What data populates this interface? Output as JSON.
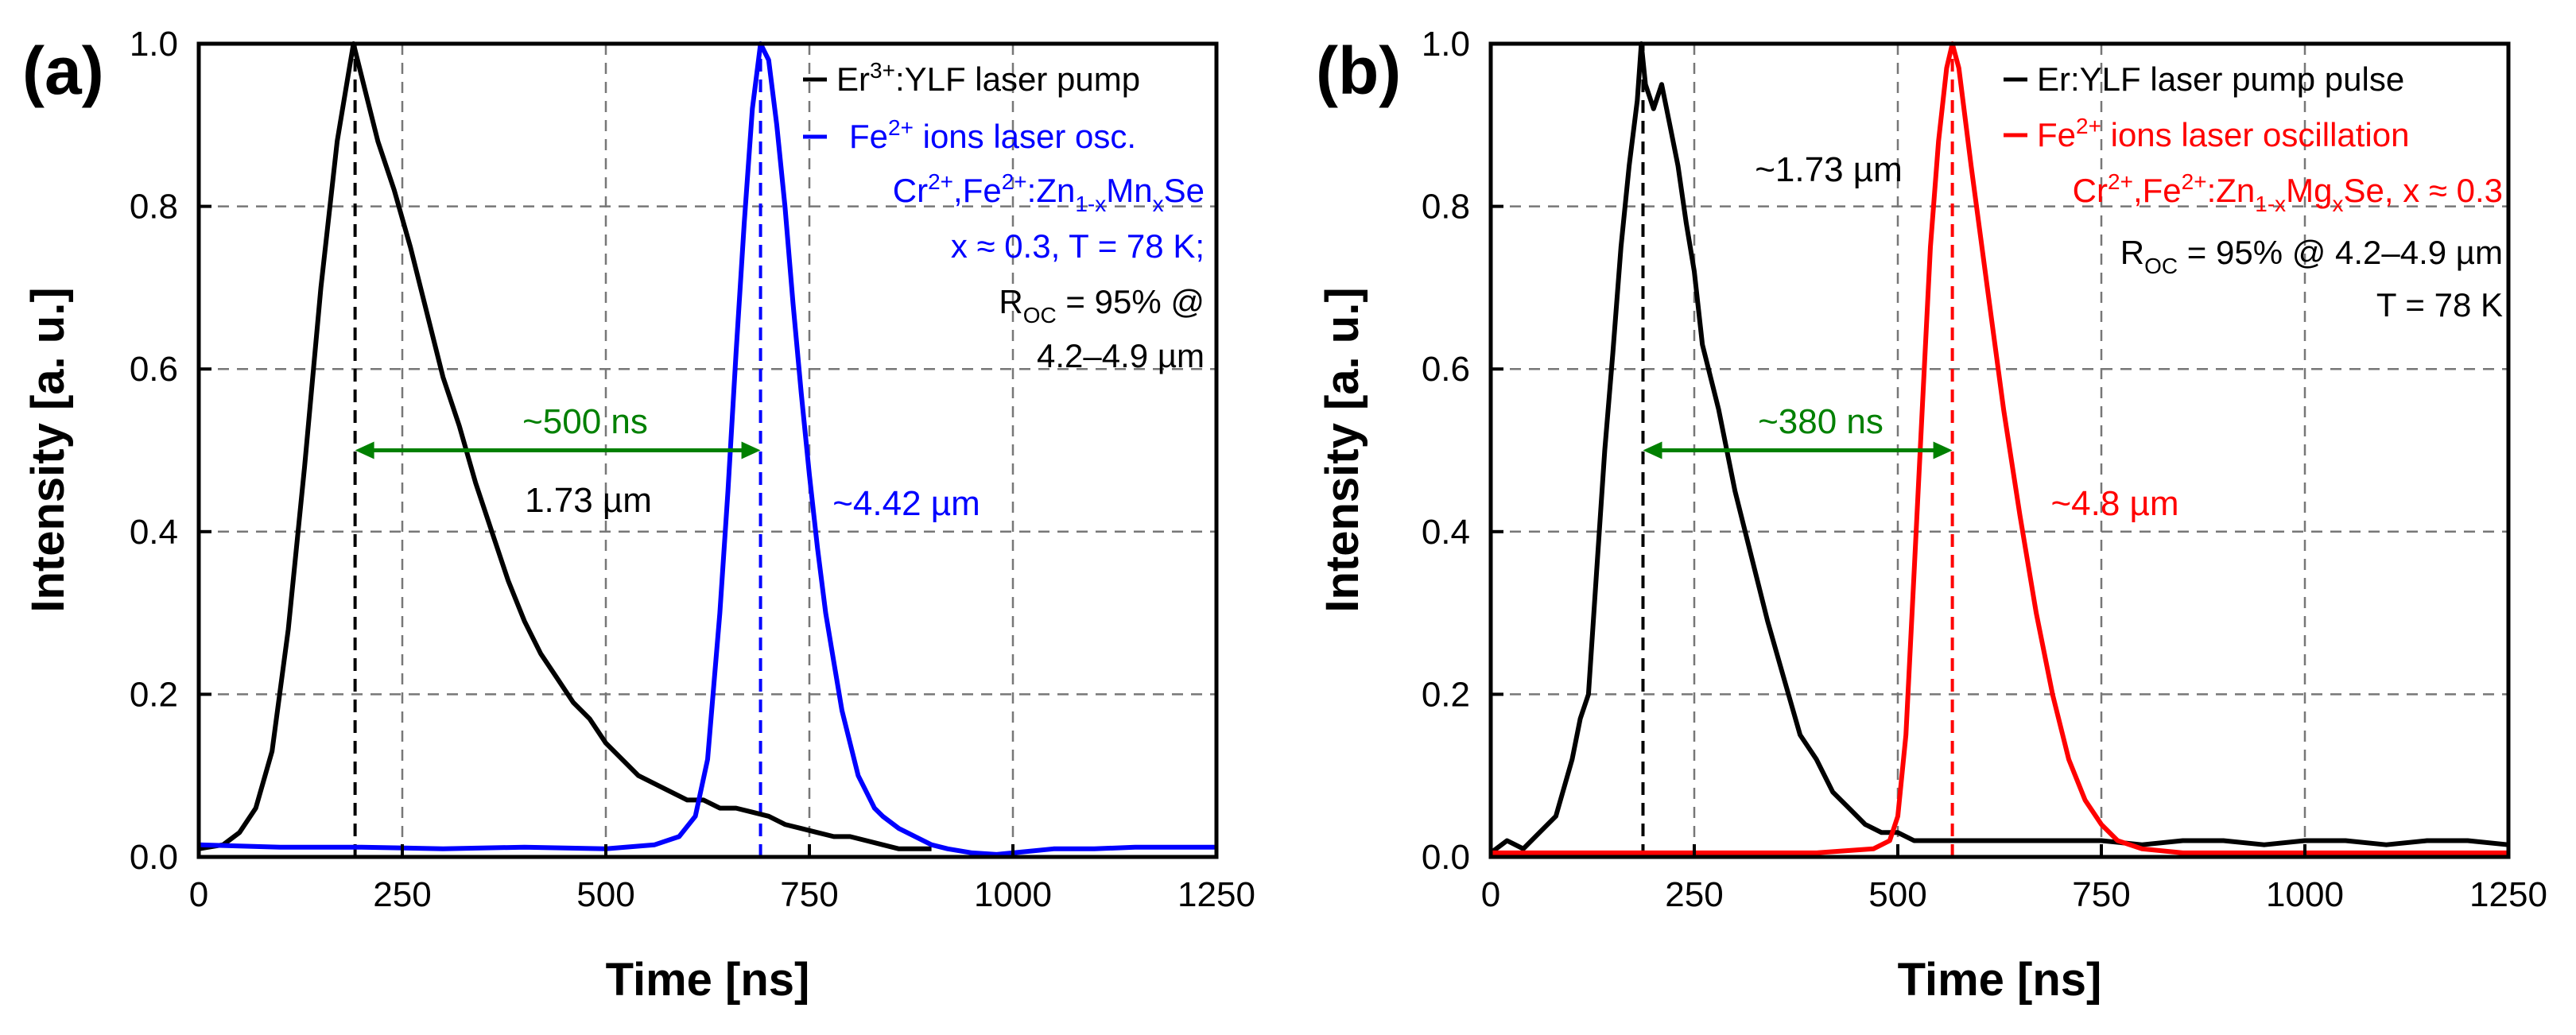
{
  "figure_title": "",
  "chart_data": [
    {
      "panel": "(a)",
      "type": "line",
      "xlabel": "Time [ns]",
      "ylabel": "Intensity [a. u.]",
      "xlim": [
        0,
        1250
      ],
      "ylim": [
        0,
        1.0
      ],
      "xticks": [
        0,
        250,
        500,
        750,
        1000,
        1250
      ],
      "yticks": [
        0.0,
        0.2,
        0.4,
        0.6,
        0.8,
        1.0
      ],
      "grid": true,
      "legend_position": "top-right",
      "series": [
        {
          "name": "Er:YLF laser pump",
          "color": "#000000",
          "x": [
            0,
            30,
            50,
            70,
            90,
            110,
            130,
            150,
            170,
            185,
            190,
            195,
            205,
            220,
            240,
            260,
            280,
            300,
            320,
            340,
            360,
            380,
            400,
            420,
            440,
            460,
            480,
            500,
            520,
            540,
            560,
            580,
            600,
            620,
            640,
            660,
            680,
            700,
            720,
            740,
            760,
            780,
            800,
            820,
            840,
            860,
            880,
            900
          ],
          "values": [
            0.01,
            0.015,
            0.03,
            0.06,
            0.13,
            0.28,
            0.48,
            0.7,
            0.88,
            0.97,
            1.0,
            0.98,
            0.94,
            0.88,
            0.82,
            0.75,
            0.67,
            0.59,
            0.53,
            0.46,
            0.4,
            0.34,
            0.29,
            0.25,
            0.22,
            0.19,
            0.17,
            0.14,
            0.12,
            0.1,
            0.09,
            0.08,
            0.07,
            0.07,
            0.06,
            0.06,
            0.055,
            0.05,
            0.04,
            0.035,
            0.03,
            0.025,
            0.025,
            0.02,
            0.015,
            0.01,
            0.01,
            0.01
          ]
        },
        {
          "name": "Fe2+ ions laser osc.",
          "color": "#0000ff",
          "x": [
            0,
            100,
            200,
            300,
            400,
            500,
            560,
            590,
            610,
            625,
            640,
            650,
            660,
            670,
            680,
            690,
            700,
            710,
            720,
            730,
            740,
            750,
            760,
            770,
            780,
            790,
            800,
            810,
            820,
            830,
            840,
            860,
            880,
            900,
            920,
            950,
            980,
            1000,
            1050,
            1100,
            1150,
            1200,
            1250
          ],
          "values": [
            0.015,
            0.012,
            0.012,
            0.01,
            0.012,
            0.01,
            0.015,
            0.025,
            0.05,
            0.12,
            0.3,
            0.45,
            0.62,
            0.78,
            0.92,
            1.0,
            0.98,
            0.9,
            0.8,
            0.68,
            0.57,
            0.47,
            0.38,
            0.3,
            0.24,
            0.18,
            0.14,
            0.1,
            0.08,
            0.06,
            0.05,
            0.035,
            0.025,
            0.015,
            0.01,
            0.005,
            0.003,
            0.005,
            0.01,
            0.01,
            0.012,
            0.012,
            0.012
          ]
        }
      ],
      "legend_entries": [
        {
          "base": "Er",
          "sup": "3+",
          "rest": ":YLF laser pump",
          "color": "#000000"
        },
        {
          "base": "Fe",
          "sup": "2+",
          "rest": " ions laser osc.",
          "color": "#0000ff"
        }
      ],
      "info_lines": [
        {
          "text": "Cr2+,Fe2+:Zn1-xMnxSe",
          "color": "#0000ff"
        },
        {
          "text": "x ≈ 0.3, T = 78 K;",
          "color": "#0000ff"
        },
        {
          "text": "ROC = 95% @",
          "color": "#000000"
        },
        {
          "text": "4.2–4.9 µm",
          "color": "#000000"
        }
      ],
      "info_parts": {
        "cr": "Cr",
        "cr_sup": "2+",
        "fe": ",Fe",
        "fe_sup": "2+",
        "zn": ":Zn",
        "zn_sub": "1-x",
        "mn": "Mn",
        "mn_sub": "x",
        "se": "Se",
        "x_line": "x ≈ 0.3, T = 78 K;",
        "r": "R",
        "r_sub": "OC",
        "r_rest": " = 95% @",
        "range": "4.2–4.9 µm"
      },
      "annotations": {
        "delay": "~500 ns",
        "pump_wavelength": "1.73 µm",
        "laser_wavelength": "~4.42 µm"
      },
      "delay_arrow": {
        "from": 192,
        "to": 690,
        "y": 0.5
      },
      "peak_markers": [
        192,
        690
      ],
      "colors": {
        "pump": "#000000",
        "laser": "#0000ff",
        "arrow": "#008000"
      }
    },
    {
      "panel": "(b)",
      "type": "line",
      "xlabel": "Time [ns]",
      "ylabel": "Intensity [a. u.]",
      "xlim": [
        0,
        1250
      ],
      "ylim": [
        0,
        1.0
      ],
      "xticks": [
        0,
        250,
        500,
        750,
        1000,
        1250
      ],
      "yticks": [
        0.0,
        0.2,
        0.4,
        0.6,
        0.8,
        1.0
      ],
      "grid": true,
      "legend_position": "top-right",
      "series": [
        {
          "name": "Er:YLF laser pump pulse",
          "color": "#000000",
          "x": [
            0,
            20,
            40,
            60,
            80,
            100,
            110,
            120,
            130,
            140,
            150,
            160,
            170,
            180,
            185,
            190,
            200,
            210,
            220,
            230,
            240,
            250,
            260,
            280,
            300,
            320,
            340,
            360,
            380,
            400,
            420,
            440,
            460,
            480,
            500,
            520,
            540,
            560,
            600,
            650,
            700,
            750,
            800,
            850,
            900,
            950,
            1000,
            1050,
            1100,
            1150,
            1200,
            1250
          ],
          "values": [
            0.005,
            0.02,
            0.01,
            0.03,
            0.05,
            0.12,
            0.17,
            0.2,
            0.35,
            0.5,
            0.62,
            0.75,
            0.85,
            0.93,
            1.0,
            0.95,
            0.92,
            0.95,
            0.9,
            0.85,
            0.78,
            0.72,
            0.63,
            0.55,
            0.45,
            0.37,
            0.29,
            0.22,
            0.15,
            0.12,
            0.08,
            0.06,
            0.04,
            0.03,
            0.03,
            0.02,
            0.02,
            0.02,
            0.02,
            0.02,
            0.02,
            0.02,
            0.015,
            0.02,
            0.02,
            0.015,
            0.02,
            0.02,
            0.015,
            0.02,
            0.02,
            0.015
          ]
        },
        {
          "name": "Fe2+ ions laser oscillation",
          "color": "#ff0000",
          "x": [
            0,
            100,
            200,
            300,
            400,
            470,
            490,
            500,
            510,
            520,
            530,
            540,
            550,
            560,
            567,
            575,
            590,
            610,
            630,
            650,
            670,
            690,
            710,
            730,
            750,
            770,
            800,
            850,
            900,
            1000,
            1100,
            1250
          ],
          "values": [
            0.005,
            0.005,
            0.005,
            0.005,
            0.005,
            0.01,
            0.02,
            0.05,
            0.15,
            0.35,
            0.55,
            0.75,
            0.88,
            0.97,
            1.0,
            0.97,
            0.85,
            0.7,
            0.55,
            0.42,
            0.3,
            0.2,
            0.12,
            0.07,
            0.04,
            0.02,
            0.01,
            0.005,
            0.005,
            0.005,
            0.005,
            0.005
          ]
        }
      ],
      "legend_entries": [
        {
          "base": "Er",
          "sup": "",
          "rest": ":YLF laser pump pulse",
          "color": "#000000"
        },
        {
          "base": "Fe",
          "sup": "2+",
          "rest": " ions laser oscillation",
          "color": "#ff0000"
        }
      ],
      "info_lines": [
        {
          "text": "Cr2+,Fe2+:Zn1-xMgxSe, x ≈ 0.3",
          "color": "#ff0000"
        },
        {
          "text": "ROC = 95% @ 4.2–4.9 µm",
          "color": "#000000"
        },
        {
          "text": "T = 78 K",
          "color": "#000000"
        }
      ],
      "info_parts": {
        "cr": "Cr",
        "cr_sup": "2+",
        "fe": ",Fe",
        "fe_sup": "2+",
        "zn": ":Zn",
        "zn_sub": "1-x",
        "mg": "Mg",
        "mg_sub": "x",
        "se": "Se, x ≈ 0.3",
        "r": "R",
        "r_sub": "OC",
        "r_rest": " = 95% @ 4.2–4.9 µm",
        "t_line": "T = 78 K"
      },
      "annotations": {
        "delay": "~380 ns",
        "pump_wavelength": "~1.73 µm",
        "laser_wavelength": "~4.8 µm"
      },
      "delay_arrow": {
        "from": 187,
        "to": 567,
        "y": 0.5
      },
      "peak_markers": [
        187,
        567
      ],
      "colors": {
        "pump": "#000000",
        "laser": "#ff0000",
        "arrow": "#008000"
      }
    }
  ]
}
